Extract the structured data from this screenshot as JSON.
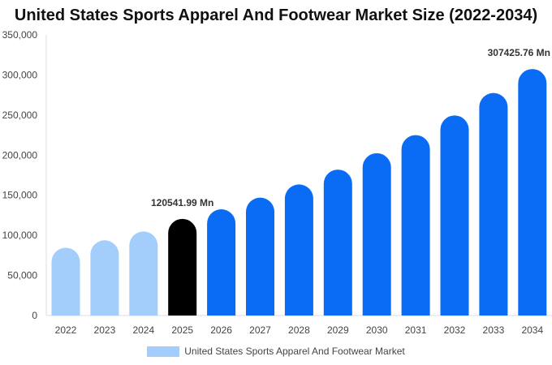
{
  "chart_data": {
    "type": "bar",
    "title": "United States Sports Apparel And Footwear Market Size (2022-2034)",
    "categories": [
      "2022",
      "2023",
      "2024",
      "2025",
      "2026",
      "2027",
      "2028",
      "2029",
      "2030",
      "2031",
      "2032",
      "2033",
      "2034"
    ],
    "series": [
      {
        "name": "United States Sports Apparel And Footwear Market",
        "values": [
          84500,
          93800,
          104800,
          120541.99,
          132500,
          147000,
          163500,
          182000,
          202500,
          225000,
          249500,
          277500,
          307425.76
        ]
      }
    ],
    "ylim": [
      0,
      350000
    ],
    "yticks": [
      "0",
      "50,000",
      "100,000",
      "150,000",
      "200,000",
      "250,000",
      "300,000",
      "350,000"
    ],
    "ytick_values": [
      0,
      50000,
      100000,
      150000,
      200000,
      250000,
      300000,
      350000
    ],
    "annotations": [
      {
        "category": "2025",
        "text": "120541.99 Mn"
      },
      {
        "category": "2034",
        "text": "307425.76 Mn"
      }
    ],
    "colors": {
      "historical": "#a3cdfb",
      "current": "#000000",
      "forecast": "#0a6cf5",
      "axis": "#dddddd"
    },
    "bar_color_groups": [
      "historical",
      "historical",
      "historical",
      "current",
      "forecast",
      "forecast",
      "forecast",
      "forecast",
      "forecast",
      "forecast",
      "forecast",
      "forecast",
      "forecast"
    ],
    "legend_position": "bottom",
    "grid": false
  }
}
